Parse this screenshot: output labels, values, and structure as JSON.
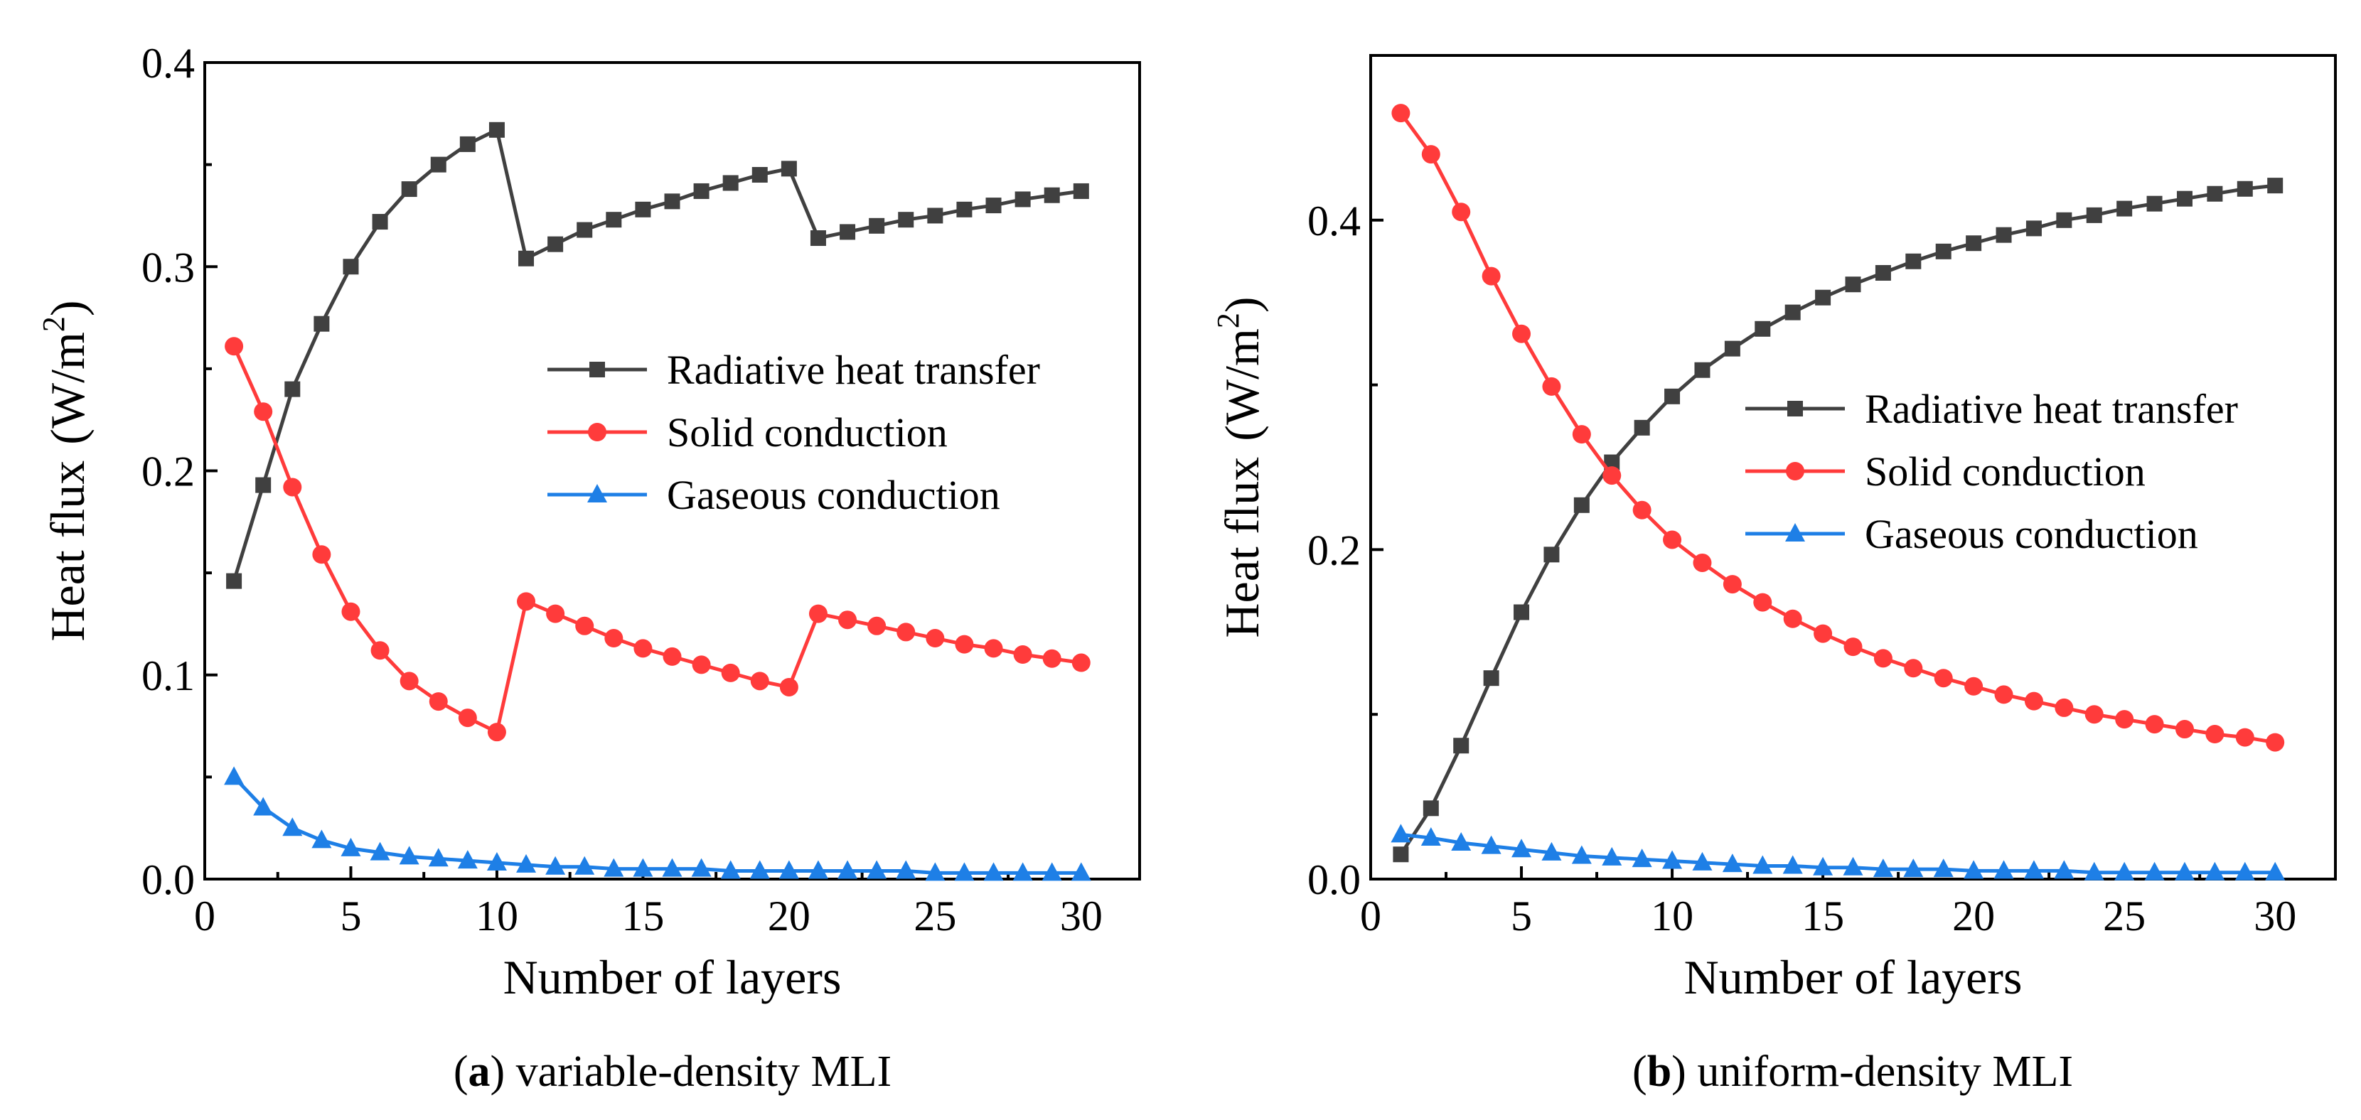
{
  "chart_data": [
    {
      "type": "line",
      "caption": {
        "letter": "a",
        "text": "variable-density MLI"
      },
      "xlabel": "Number of layers",
      "ylabel": "Heat flux",
      "ylabel_unit": "(W/m",
      "ylabel_sup": "2",
      "ylabel_close": ")",
      "xlim": [
        0,
        32
      ],
      "ylim": [
        0,
        0.4
      ],
      "xticks": [
        0,
        5,
        10,
        15,
        20,
        25,
        30
      ],
      "xtick_labels": [
        "0",
        "5",
        "10",
        "15",
        "20",
        "25",
        "30"
      ],
      "yticks": [
        0,
        0.1,
        0.2,
        0.3,
        0.4
      ],
      "ytick_labels": [
        "0.0",
        "0.1",
        "0.2",
        "0.3",
        "0.4"
      ],
      "legend_position": "upper-right",
      "x": [
        1,
        2,
        3,
        4,
        5,
        6,
        7,
        8,
        9,
        10,
        11,
        12,
        13,
        14,
        15,
        16,
        17,
        18,
        19,
        20,
        21,
        22,
        23,
        24,
        25,
        26,
        27,
        28,
        29,
        30
      ],
      "series": [
        {
          "name": "Radiative heat transfer",
          "color": "#404040",
          "marker": "square",
          "values": [
            0.146,
            0.193,
            0.24,
            0.272,
            0.3,
            0.322,
            0.338,
            0.35,
            0.36,
            0.367,
            0.304,
            0.311,
            0.318,
            0.323,
            0.328,
            0.332,
            0.337,
            0.341,
            0.345,
            0.348,
            0.314,
            0.317,
            0.32,
            0.323,
            0.325,
            0.328,
            0.33,
            0.333,
            0.335,
            0.337
          ]
        },
        {
          "name": "Solid conduction",
          "color": "#ff3b3b",
          "marker": "circle",
          "values": [
            0.261,
            0.229,
            0.192,
            0.159,
            0.131,
            0.112,
            0.097,
            0.087,
            0.079,
            0.072,
            0.136,
            0.13,
            0.124,
            0.118,
            0.113,
            0.109,
            0.105,
            0.101,
            0.097,
            0.094,
            0.13,
            0.127,
            0.124,
            0.121,
            0.118,
            0.115,
            0.113,
            0.11,
            0.108,
            0.106
          ]
        },
        {
          "name": "Gaseous conduction",
          "color": "#1e7fe6",
          "marker": "triangle",
          "values": [
            0.05,
            0.035,
            0.025,
            0.019,
            0.015,
            0.013,
            0.011,
            0.01,
            0.009,
            0.008,
            0.007,
            0.006,
            0.006,
            0.005,
            0.005,
            0.005,
            0.005,
            0.004,
            0.004,
            0.004,
            0.004,
            0.004,
            0.004,
            0.004,
            0.003,
            0.003,
            0.003,
            0.003,
            0.003,
            0.003
          ]
        }
      ]
    },
    {
      "type": "line",
      "caption": {
        "letter": "b",
        "text": "uniform-density MLI"
      },
      "xlabel": "Number of layers",
      "ylabel": "Heat flux",
      "ylabel_unit": "(W/m",
      "ylabel_sup": "2",
      "ylabel_close": ")",
      "xlim": [
        0,
        32
      ],
      "ylim": [
        0,
        0.5
      ],
      "xticks": [
        0,
        5,
        10,
        15,
        20,
        25,
        30
      ],
      "xtick_labels": [
        "0",
        "5",
        "10",
        "15",
        "20",
        "25",
        "30"
      ],
      "yticks": [
        0,
        0.2,
        0.4
      ],
      "ytick_labels": [
        "0.0",
        "0.2",
        "0.4"
      ],
      "legend_position": "center-right",
      "x": [
        1,
        2,
        3,
        4,
        5,
        6,
        7,
        8,
        9,
        10,
        11,
        12,
        13,
        14,
        15,
        16,
        17,
        18,
        19,
        20,
        21,
        22,
        23,
        24,
        25,
        26,
        27,
        28,
        29,
        30
      ],
      "series": [
        {
          "name": "Radiative heat transfer",
          "color": "#404040",
          "marker": "square",
          "values": [
            0.015,
            0.043,
            0.081,
            0.122,
            0.162,
            0.197,
            0.227,
            0.253,
            0.274,
            0.293,
            0.309,
            0.322,
            0.334,
            0.344,
            0.353,
            0.361,
            0.368,
            0.375,
            0.381,
            0.386,
            0.391,
            0.395,
            0.4,
            0.403,
            0.407,
            0.41,
            0.413,
            0.416,
            0.419,
            0.421
          ]
        },
        {
          "name": "Solid conduction",
          "color": "#ff3b3b",
          "marker": "circle",
          "values": [
            0.465,
            0.44,
            0.405,
            0.366,
            0.331,
            0.299,
            0.27,
            0.245,
            0.224,
            0.206,
            0.192,
            0.179,
            0.168,
            0.158,
            0.149,
            0.141,
            0.134,
            0.128,
            0.122,
            0.117,
            0.112,
            0.108,
            0.104,
            0.1,
            0.097,
            0.094,
            0.091,
            0.088,
            0.086,
            0.083
          ]
        },
        {
          "name": "Gaseous conduction",
          "color": "#1e7fe6",
          "marker": "triangle",
          "values": [
            0.027,
            0.025,
            0.022,
            0.02,
            0.018,
            0.016,
            0.014,
            0.013,
            0.012,
            0.011,
            0.01,
            0.009,
            0.008,
            0.008,
            0.007,
            0.007,
            0.006,
            0.006,
            0.006,
            0.005,
            0.005,
            0.005,
            0.005,
            0.004,
            0.004,
            0.004,
            0.004,
            0.004,
            0.004,
            0.004
          ]
        }
      ]
    }
  ]
}
